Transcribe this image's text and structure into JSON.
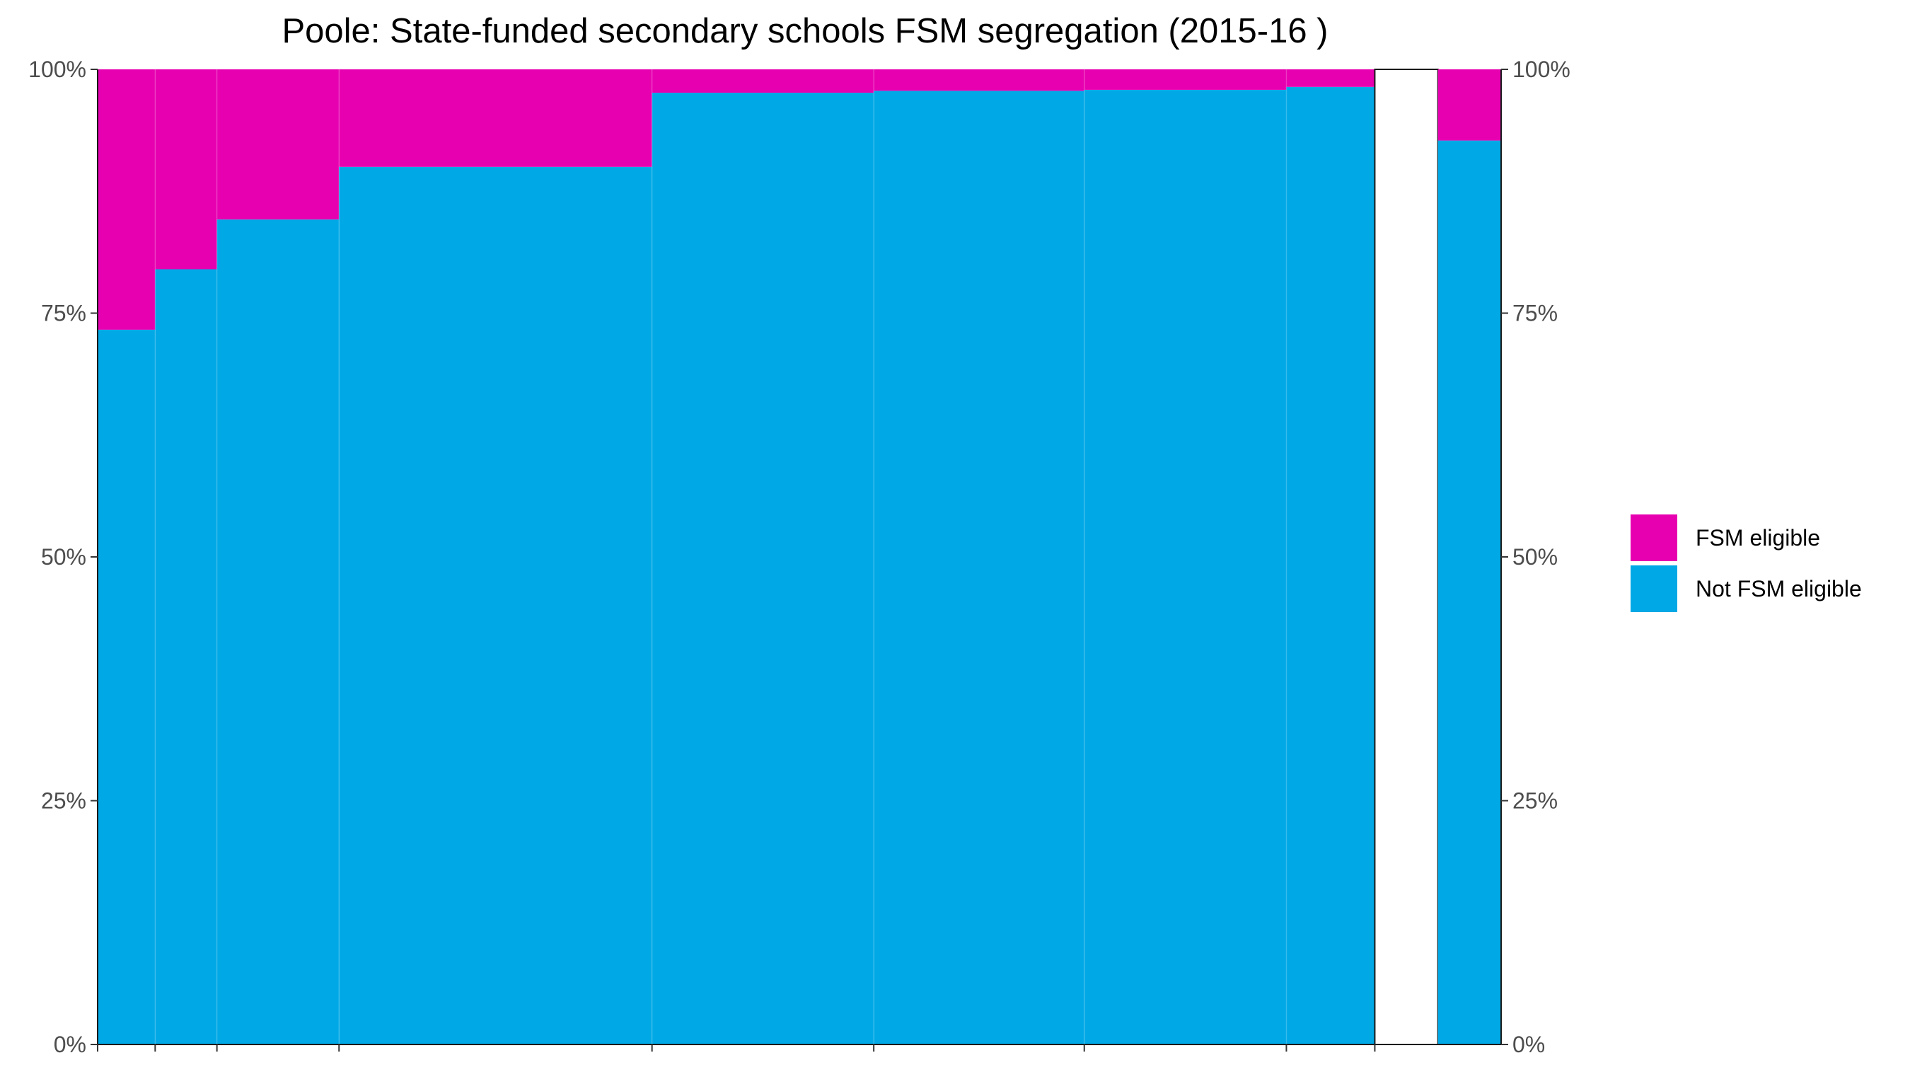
{
  "chart_data": {
    "type": "bar",
    "title": "Poole: State-funded secondary schools FSM segregation (2015-16 )",
    "xlabel": "",
    "ylabel": "",
    "ylim": [
      0,
      100
    ],
    "y_ticks": [
      "0%",
      "25%",
      "50%",
      "75%",
      "100%"
    ],
    "grid": false,
    "legend_position": "right",
    "x_cumulative_share": [
      0,
      0.041,
      0.085,
      0.172,
      0.395,
      0.553,
      0.703,
      0.847,
      0.91,
      0.955,
      1.0
    ],
    "bars": [
      {
        "group": "school",
        "fsm_eligible": 26.7,
        "not_fsm_eligible": 73.3
      },
      {
        "group": "school",
        "fsm_eligible": 20.5,
        "not_fsm_eligible": 79.5
      },
      {
        "group": "school",
        "fsm_eligible": 15.4,
        "not_fsm_eligible": 84.6
      },
      {
        "group": "school",
        "fsm_eligible": 10.0,
        "not_fsm_eligible": 90.0
      },
      {
        "group": "school",
        "fsm_eligible": 2.4,
        "not_fsm_eligible": 97.6
      },
      {
        "group": "school",
        "fsm_eligible": 2.2,
        "not_fsm_eligible": 97.8
      },
      {
        "group": "school",
        "fsm_eligible": 2.1,
        "not_fsm_eligible": 97.9
      },
      {
        "group": "school",
        "fsm_eligible": 1.8,
        "not_fsm_eligible": 98.2
      },
      {
        "group": "gap",
        "fsm_eligible": 0,
        "not_fsm_eligible": 0
      },
      {
        "group": "total",
        "fsm_eligible": 7.3,
        "not_fsm_eligible": 92.7
      }
    ],
    "series": [
      {
        "name": "FSM eligible",
        "color": "#e700b0"
      },
      {
        "name": "Not FSM eligible",
        "color": "#00a8e6"
      }
    ]
  }
}
